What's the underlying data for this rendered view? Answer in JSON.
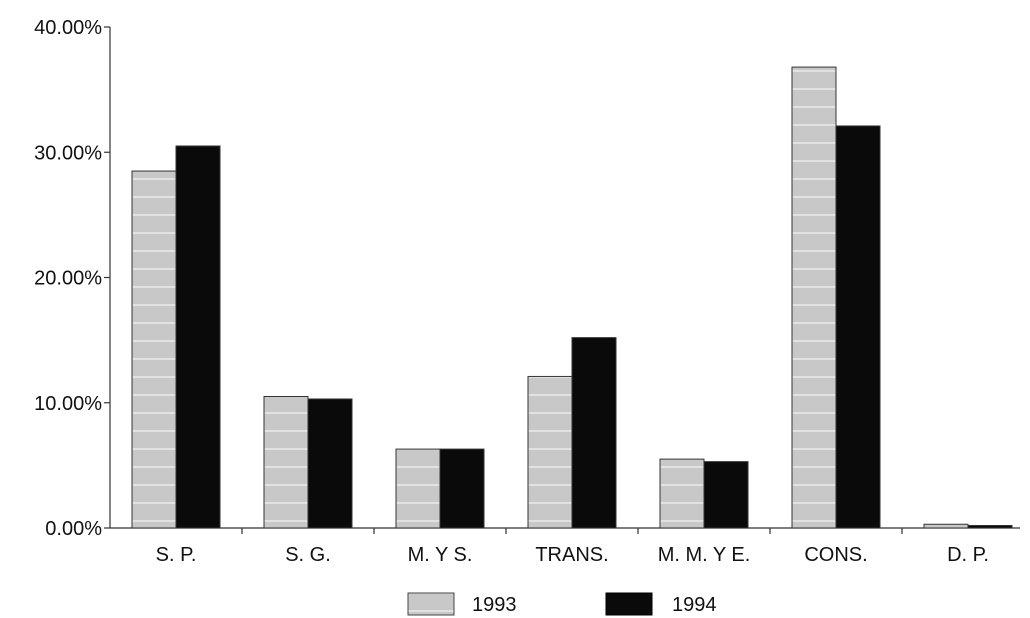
{
  "chart_data": {
    "type": "bar",
    "categories": [
      "S. P.",
      "S. G.",
      "M. Y S.",
      "TRANS.",
      "M. M. Y E.",
      "CONS.",
      "D. P."
    ],
    "series": [
      {
        "name": "1993",
        "color": "#c8c8c8",
        "values": [
          28.5,
          10.5,
          6.3,
          12.1,
          5.5,
          36.8,
          0.3
        ]
      },
      {
        "name": "1994",
        "color": "#0a0a0a",
        "values": [
          30.5,
          10.3,
          6.3,
          15.2,
          5.3,
          32.1,
          0.2
        ]
      }
    ],
    "yticks": [
      "0.00%",
      "10.00%",
      "20.00%",
      "30.00%",
      "40.00%"
    ],
    "ylim": [
      0,
      40
    ],
    "legend_position": "bottom-center",
    "grid": false
  }
}
